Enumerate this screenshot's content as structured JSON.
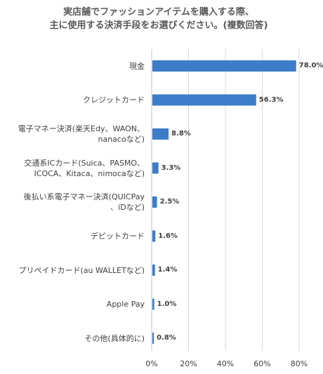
{
  "chart_data": {
    "type": "bar",
    "orientation": "horizontal",
    "title_lines": [
      "実店舗でファッションアイテムを購入する際、",
      "主に使用する決済手段をお選びください。(複数回答)"
    ],
    "categories": [
      [
        "現金"
      ],
      [
        "クレジットカード"
      ],
      [
        "電子マネー決済(楽天Edy、WAON、",
        "nanacoなど)"
      ],
      [
        "交通系ICカード(Suica、PASMO、",
        "ICOCA、Kitaca、nimocaなど)"
      ],
      [
        "後払い系電子マネー決済(QUICPay",
        "、iDなど)"
      ],
      [
        "デビットカード"
      ],
      [
        "プリペイドカード(au WALLETなど)"
      ],
      [
        "Apple Pay"
      ],
      [
        "その他(具体的に)"
      ]
    ],
    "values": [
      78.0,
      56.3,
      8.8,
      3.3,
      2.5,
      1.6,
      1.4,
      1.0,
      0.8
    ],
    "value_labels": [
      "78.0%",
      "56.3%",
      "8.8%",
      "3.3%",
      "2.5%",
      "1.6%",
      "1.4%",
      "1.0%",
      "0.8%"
    ],
    "xticks": [
      "0%",
      "20%",
      "40%",
      "60%",
      "80%"
    ],
    "xtick_values": [
      0,
      20,
      40,
      60,
      80
    ],
    "xlim": [
      0,
      80
    ],
    "grid": true,
    "bar_color": "#3D7CC9",
    "grid_color": "#D9D9D9",
    "axis_color": "#BFBFBF"
  }
}
